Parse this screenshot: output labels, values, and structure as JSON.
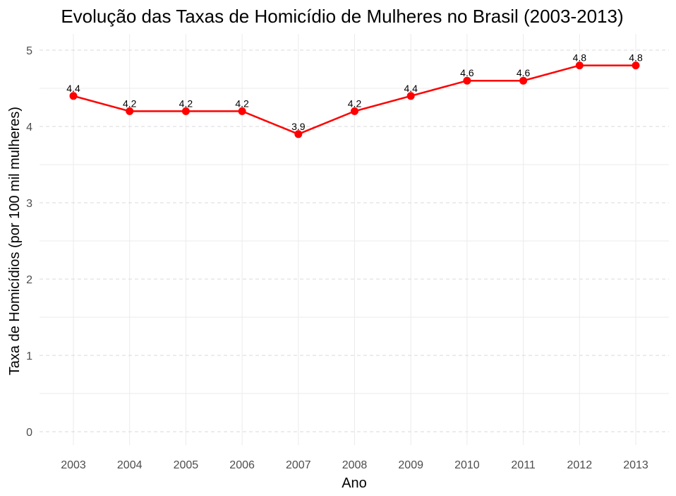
{
  "chart_data": {
    "type": "line",
    "title": "Evolução das Taxas de Homicídio de Mulheres no Brasil (2003-2013)",
    "xlabel": "Ano",
    "ylabel": "Taxa de Homicídios (por 100 mil mulheres)",
    "x": [
      "2003",
      "2004",
      "2005",
      "2006",
      "2007",
      "2008",
      "2009",
      "2010",
      "2011",
      "2012",
      "2013"
    ],
    "values": [
      4.4,
      4.2,
      4.2,
      4.2,
      3.9,
      4.2,
      4.4,
      4.6,
      4.6,
      4.8,
      4.8
    ],
    "data_labels": [
      "4.4",
      "4.2",
      "4.2",
      "4.2",
      "3.9",
      "4.2",
      "4.4",
      "4.6",
      "4.6",
      "4.8",
      "4.8"
    ],
    "y_ticks": [
      "0",
      "1",
      "2",
      "3",
      "4",
      "5"
    ],
    "ylim": [
      0,
      5
    ],
    "series_color": "#ff0000",
    "grid": true,
    "legend": "none"
  }
}
